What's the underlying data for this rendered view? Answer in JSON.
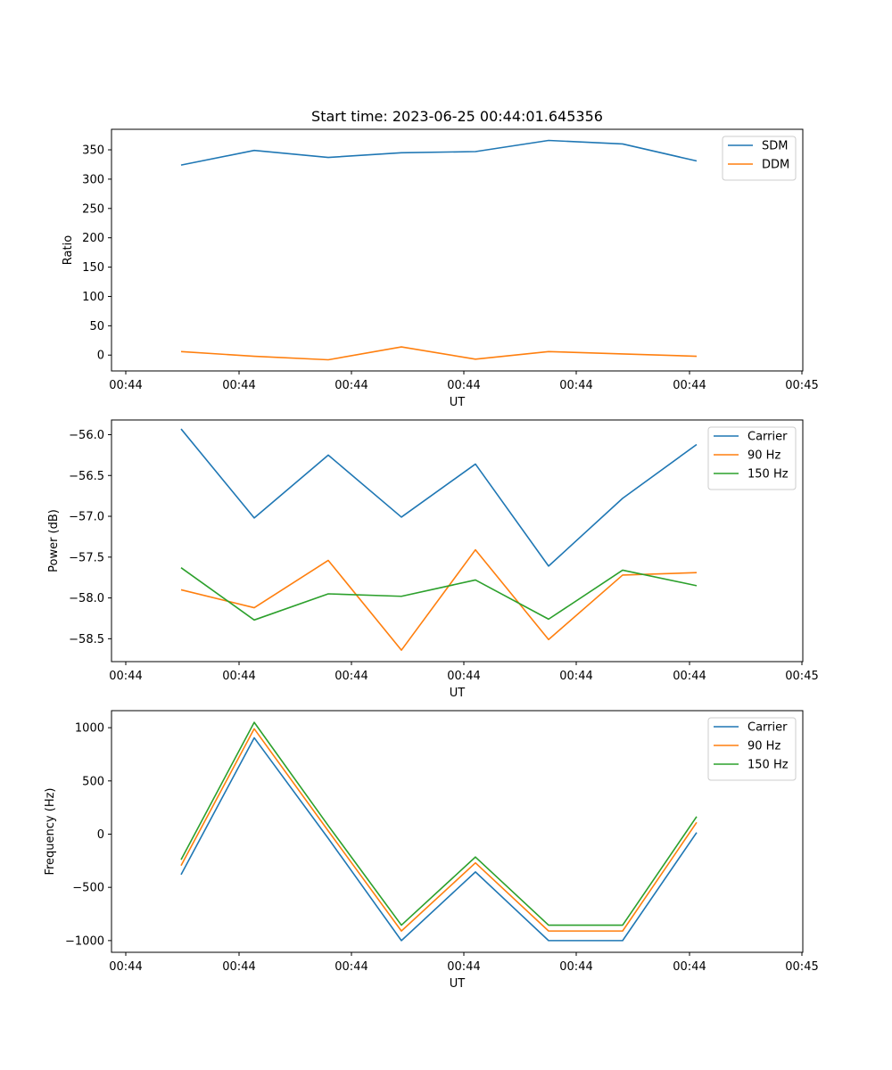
{
  "chart_data": [
    {
      "type": "line",
      "title": "Start time: 2023-06-25 00:44:01.645356",
      "xlabel": "UT",
      "ylabel": "Ratio",
      "x_ticks": [
        "00:44",
        "00:44",
        "00:44",
        "00:44",
        "00:44",
        "00:44",
        "00:45"
      ],
      "ylim": [
        -27,
        385
      ],
      "y_ticks": [
        0,
        50,
        100,
        150,
        200,
        250,
        300,
        350
      ],
      "legend_position": "top-right",
      "series": [
        {
          "name": "SDM",
          "color": "#1f77b4",
          "values": [
            324,
            349,
            337,
            345,
            347,
            366,
            360,
            331
          ]
        },
        {
          "name": "DDM",
          "color": "#ff7f0e",
          "values": [
            6,
            -2,
            -8,
            14,
            -7,
            6,
            2,
            -2
          ]
        }
      ]
    },
    {
      "type": "line",
      "title": "",
      "xlabel": "UT",
      "ylabel": "Power (dB)",
      "x_ticks": [
        "00:44",
        "00:44",
        "00:44",
        "00:44",
        "00:44",
        "00:44",
        "00:45"
      ],
      "ylim": [
        -58.78,
        -55.82
      ],
      "y_ticks": [
        -58.5,
        -58.0,
        -57.5,
        -57.0,
        -56.5,
        -56.0
      ],
      "legend_position": "top-right",
      "series": [
        {
          "name": "Carrier",
          "color": "#1f77b4",
          "values": [
            -55.93,
            -57.02,
            -56.25,
            -57.01,
            -56.36,
            -57.61,
            -56.78,
            -56.12
          ]
        },
        {
          "name": "90 Hz",
          "color": "#ff7f0e",
          "values": [
            -57.9,
            -58.12,
            -57.54,
            -58.64,
            -57.41,
            -58.51,
            -57.72,
            -57.69
          ]
        },
        {
          "name": "150 Hz",
          "color": "#2ca02c",
          "values": [
            -57.63,
            -58.27,
            -57.95,
            -57.98,
            -57.78,
            -58.26,
            -57.66,
            -57.85
          ]
        }
      ]
    },
    {
      "type": "line",
      "title": "",
      "xlabel": "UT",
      "ylabel": "Frequency (Hz)",
      "x_ticks": [
        "00:44",
        "00:44",
        "00:44",
        "00:44",
        "00:44",
        "00:44",
        "00:45"
      ],
      "ylim": [
        -1110,
        1160
      ],
      "y_ticks": [
        -1000,
        -500,
        0,
        500,
        1000
      ],
      "legend_position": "top-right",
      "series": [
        {
          "name": "Carrier",
          "color": "#1f77b4",
          "values": [
            -380,
            905,
            -40,
            -1000,
            -355,
            -1000,
            -1000,
            15
          ]
        },
        {
          "name": "90 Hz",
          "color": "#ff7f0e",
          "values": [
            -295,
            990,
            30,
            -910,
            -270,
            -910,
            -910,
            110
          ]
        },
        {
          "name": "150 Hz",
          "color": "#2ca02c",
          "values": [
            -240,
            1050,
            80,
            -855,
            -215,
            -855,
            -855,
            165
          ]
        }
      ]
    }
  ]
}
